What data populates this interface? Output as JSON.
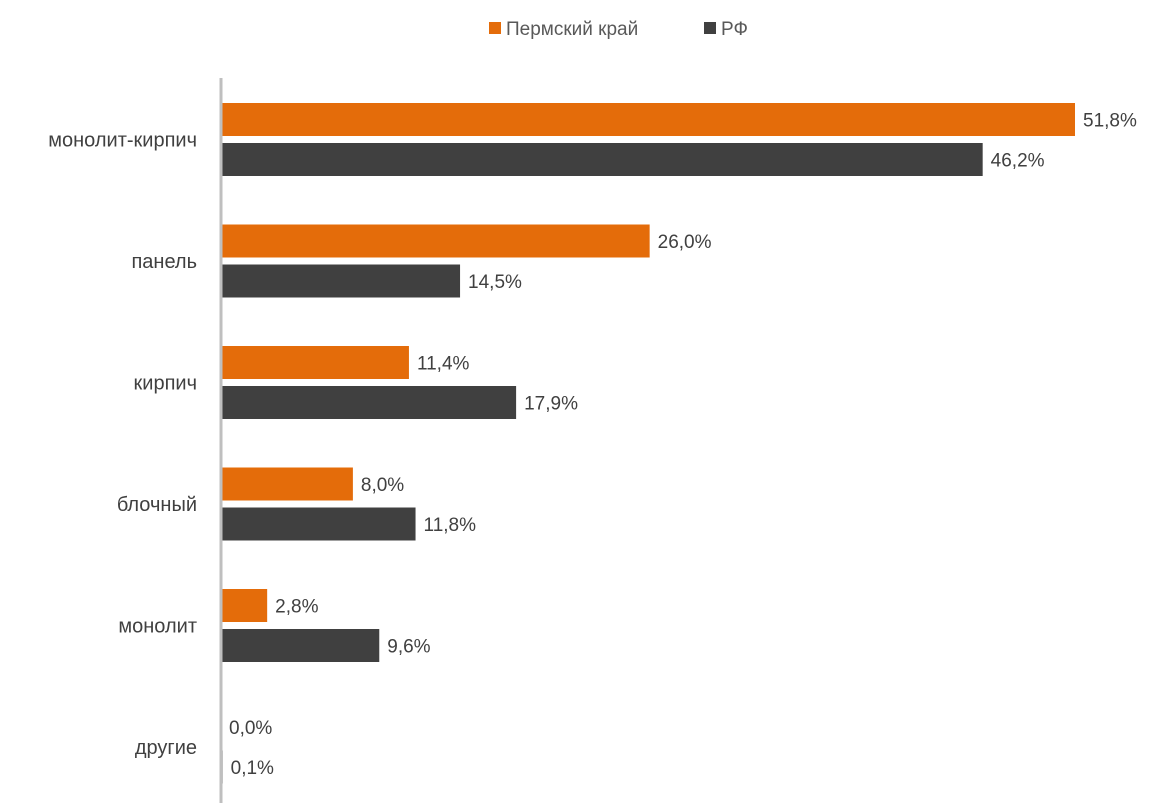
{
  "chart_data": {
    "type": "bar",
    "orientation": "horizontal",
    "categories": [
      "монолит-кирпич",
      "панель",
      "кирпич",
      "блочный",
      "монолит",
      "другие"
    ],
    "series": [
      {
        "name": "Пермский край",
        "color": "#E46C0A",
        "values": [
          51.8,
          26.0,
          11.4,
          8.0,
          2.8,
          0.0
        ],
        "labels": [
          "51,8%",
          "26,0%",
          "11,4%",
          "8,0%",
          "2,8%",
          "0,0%"
        ]
      },
      {
        "name": "РФ",
        "color": "#404040",
        "values": [
          46.2,
          14.5,
          17.9,
          11.8,
          9.6,
          0.1
        ],
        "labels": [
          "46,2%",
          "14,5%",
          "17,9%",
          "11,8%",
          "9,6%",
          "0,1%"
        ]
      }
    ],
    "xlim": [
      0,
      51.8
    ],
    "legend_position": "top-center",
    "grid": false,
    "title": "",
    "xlabel": "",
    "ylabel": ""
  }
}
